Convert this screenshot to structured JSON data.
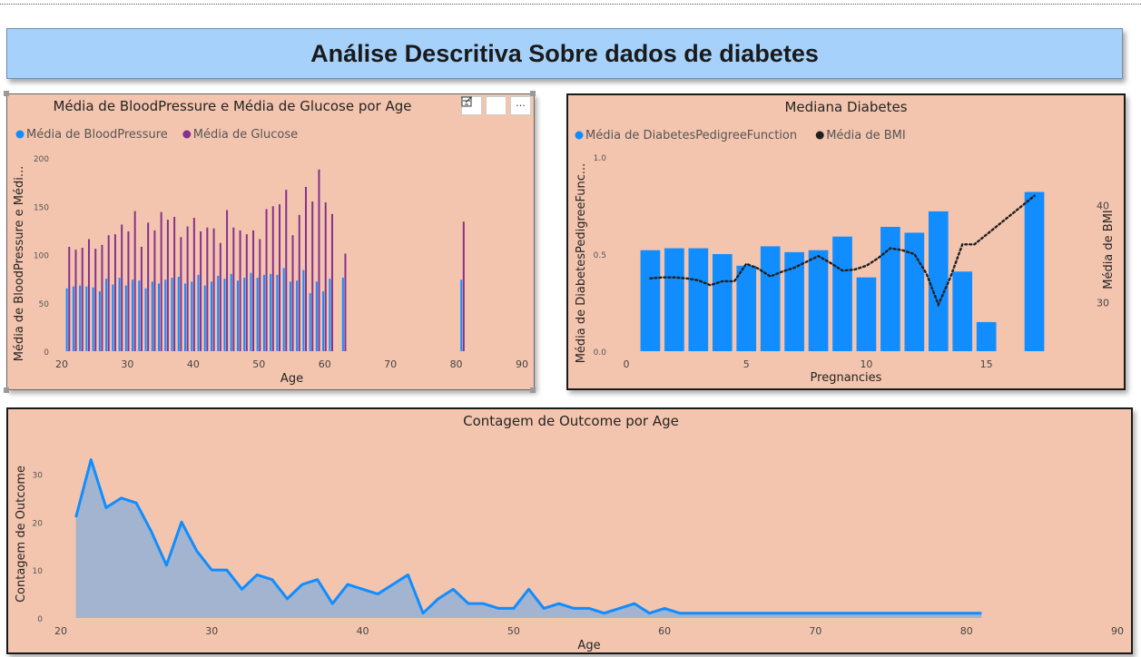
{
  "header": {
    "title": "Análise Descritiva Sobre dados de diabetes"
  },
  "colors": {
    "blue": "#118dff",
    "purple": "#86318f",
    "dark": "#1f1f1f",
    "area_fill": "#9db3d1",
    "panel_bg": "#f4c5ae"
  },
  "toolbar": {
    "icons": [
      "filter-icon",
      "focus-mode-icon",
      "more-options-icon"
    ],
    "more_label": "···"
  },
  "chart_data": [
    {
      "type": "bar",
      "title": "Média de BloodPressure e Média de Glucose por Age",
      "xlabel": "Age",
      "ylabel": "Média de BloodPressure e Médi...",
      "xlim": [
        20,
        90
      ],
      "ylim": [
        0,
        200
      ],
      "xticks": [
        20,
        30,
        40,
        50,
        60,
        70,
        80,
        90
      ],
      "yticks": [
        0,
        50,
        100,
        150,
        200
      ],
      "legend_position": "top-left",
      "x": [
        21,
        22,
        23,
        24,
        25,
        26,
        27,
        28,
        29,
        30,
        31,
        32,
        33,
        34,
        35,
        36,
        37,
        38,
        39,
        40,
        41,
        42,
        43,
        44,
        45,
        46,
        47,
        48,
        49,
        50,
        51,
        52,
        53,
        54,
        55,
        56,
        57,
        58,
        59,
        60,
        61,
        63,
        81
      ],
      "series": [
        {
          "name": "Média de BloodPressure",
          "color": "#118dff",
          "values": [
            65,
            67,
            68,
            67,
            66,
            62,
            75,
            69,
            76,
            68,
            74,
            73,
            65,
            72,
            70,
            74,
            76,
            77,
            70,
            72,
            79,
            68,
            72,
            78,
            75,
            80,
            73,
            76,
            81,
            76,
            79,
            80,
            79,
            86,
            72,
            73,
            84,
            60,
            72,
            62,
            75,
            76,
            74
          ]
        },
        {
          "name": "Média de Glucose",
          "color": "#86318f",
          "values": [
            108,
            105,
            107,
            116,
            106,
            110,
            120,
            121,
            131,
            124,
            145,
            108,
            133,
            125,
            144,
            136,
            139,
            118,
            129,
            138,
            124,
            128,
            127,
            112,
            146,
            128,
            125,
            121,
            125,
            116,
            147,
            150,
            152,
            167,
            120,
            141,
            170,
            155,
            188,
            154,
            142,
            101,
            134
          ]
        }
      ]
    },
    {
      "type": "bar",
      "title": "Mediana Diabetes",
      "xlabel": "Pregnancies",
      "ylabel": "Média de DiabetesPedigreeFunc...",
      "y2label": "Média de BMI",
      "xlim": [
        0,
        18
      ],
      "ylim": [
        0,
        1.0
      ],
      "y2lim": [
        25,
        45
      ],
      "xticks": [
        0,
        5,
        10,
        15
      ],
      "yticks": [
        "0.0",
        "0.5",
        "1.0"
      ],
      "y2ticks": [
        30,
        40
      ],
      "legend_position": "top-left",
      "x": [
        1,
        2,
        3,
        4,
        5,
        6,
        7,
        8,
        9,
        10,
        11,
        12,
        13,
        14,
        15,
        17
      ],
      "series": [
        {
          "name": "Média de DiabetesPedigreeFunction",
          "type": "bar",
          "color": "#118dff",
          "values": [
            0.52,
            0.53,
            0.53,
            0.5,
            0.44,
            0.54,
            0.51,
            0.52,
            0.59,
            0.38,
            0.64,
            0.61,
            0.72,
            0.41,
            0.15,
            0.82
          ]
        },
        {
          "name": "Média de BMI",
          "type": "line",
          "style": "dotted",
          "color": "#1f1f1f",
          "axis": "secondary",
          "x": [
            1,
            1.5,
            2,
            2.5,
            3,
            3.5,
            4,
            4.5,
            5,
            5.5,
            6,
            6.5,
            7,
            7.5,
            8,
            8.5,
            9,
            9.5,
            10,
            10.5,
            11,
            11.5,
            12,
            12.5,
            13,
            13.5,
            14,
            14.5,
            15,
            16,
            17
          ],
          "values": [
            32.5,
            32.6,
            32.6,
            32.5,
            32.3,
            31.8,
            32.2,
            32.2,
            34.0,
            33.5,
            32.7,
            33.2,
            33.6,
            34.2,
            34.8,
            34.1,
            33.3,
            33.4,
            33.8,
            34.6,
            35.6,
            35.4,
            35.0,
            33.0,
            29.8,
            32.6,
            36.0,
            36.0,
            37.0,
            39.0,
            41.0
          ]
        }
      ]
    },
    {
      "type": "area",
      "title": "Contagem de Outcome por Age",
      "xlabel": "Age",
      "ylabel": "Contagem de Outcome",
      "xlim": [
        20,
        90
      ],
      "ylim": [
        0,
        35
      ],
      "xticks": [
        20,
        30,
        40,
        50,
        60,
        70,
        80,
        90
      ],
      "yticks": [
        0,
        10,
        20,
        30
      ],
      "x": [
        21,
        22,
        23,
        24,
        25,
        26,
        27,
        28,
        29,
        30,
        31,
        32,
        33,
        34,
        35,
        36,
        37,
        38,
        39,
        40,
        41,
        42,
        43,
        44,
        45,
        46,
        47,
        48,
        49,
        50,
        51,
        52,
        53,
        54,
        55,
        56,
        57,
        58,
        59,
        60,
        61,
        62,
        63,
        64,
        65,
        66,
        67,
        68,
        69,
        70,
        72,
        81
      ],
      "series": [
        {
          "name": "Contagem de Outcome",
          "color": "#118dff",
          "values": [
            21,
            33,
            23,
            25,
            24,
            18,
            11,
            20,
            14,
            10,
            10,
            6,
            9,
            8,
            4,
            7,
            8,
            3,
            7,
            6,
            5,
            7,
            9,
            1,
            4,
            6,
            3,
            3,
            2,
            2,
            6,
            2,
            3,
            2,
            2,
            1,
            2,
            3,
            1,
            2,
            1,
            1,
            1,
            1,
            1,
            1,
            1,
            1,
            1,
            1,
            1,
            1
          ]
        }
      ]
    }
  ]
}
